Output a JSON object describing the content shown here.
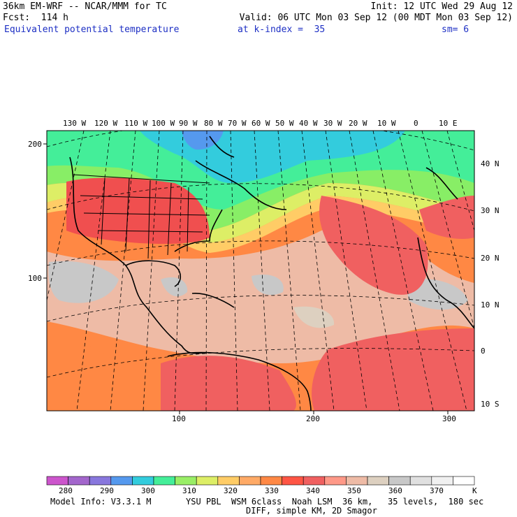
{
  "header": {
    "model": "36km EM-WRF -- NCAR/MMM for TC",
    "init": "Init: 12 UTC Wed 29 Aug 12",
    "fcst": "Fcst:  114 h",
    "valid": "Valid: 06 UTC Mon 03 Sep 12 (00 MDT Mon 03 Sep 12)",
    "field": "Equivalent potential temperature",
    "kindex": "at k-index =  35",
    "sm": "sm= 6"
  },
  "map": {
    "top_lon_labels": [
      "130 W",
      "120 W",
      "110 W",
      "100 W",
      "90 W",
      "80 W",
      "70 W",
      "60 W",
      "50 W",
      "40 W",
      "30 W",
      "20 W",
      "10 W",
      "0",
      "10 E"
    ],
    "right_lat_labels": [
      "40 N",
      "30 N",
      "20 N",
      "10 N",
      "0",
      "10 S"
    ],
    "left_grid_labels": [
      "200",
      "100"
    ],
    "bottom_grid_labels": [
      "100",
      "200",
      "300"
    ]
  },
  "colorbar": {
    "labels": [
      "280",
      "290",
      "300",
      "310",
      "320",
      "330",
      "340",
      "350",
      "360",
      "370"
    ],
    "unit": "K",
    "colors": [
      "#cc55cc",
      "#a366cc",
      "#8877dd",
      "#5599ee",
      "#33ccdd",
      "#44ee99",
      "#99ee66",
      "#ddee66",
      "#ffcc66",
      "#ffaa66",
      "#ff8844",
      "#ff5544",
      "#f06060",
      "#ff9988",
      "#eebba6",
      "#ddd0c0",
      "#c8c8c8",
      "#e0e0e0",
      "#f0f0f0",
      "#ffffff"
    ]
  },
  "footer": {
    "info": "Model Info: V3.3.1 M",
    "physics": "YSU PBL  WSM 6class  Noah LSM  36 km,   35 levels,  180 sec",
    "diff": "DIFF, simple KM, 2D Smagor"
  }
}
